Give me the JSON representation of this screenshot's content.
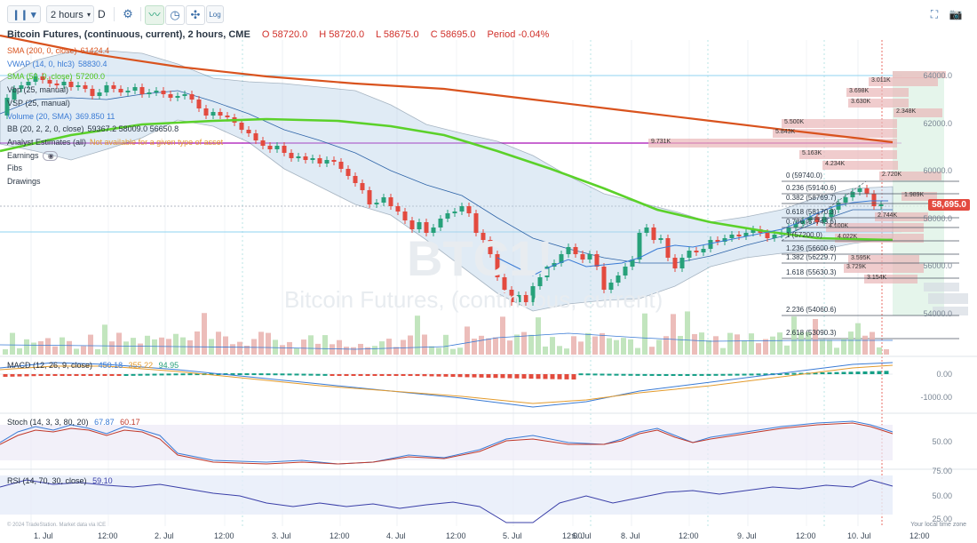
{
  "toolbar": {
    "chart_type_icon": "candlestick-icon",
    "interval": "2 hours",
    "interval_suffix": "D",
    "settings_icon": "gear-icon",
    "indicator_icon": "indicator-icon",
    "clock_icon": "clock-icon",
    "draw_icon": "drawing-icon",
    "log_label": "Log",
    "fullscreen_icon": "fullscreen-icon",
    "camera_icon": "camera-icon"
  },
  "header": {
    "title": "Bitcoin Futures, (continuous, current), 2 hours, CME",
    "open": "O 58720.0",
    "high": "H 58720.0",
    "low": "L 58675.0",
    "close": "C 58695.0",
    "period": "Period -0.04%"
  },
  "legend": [
    {
      "label": "SMA (200, 0, close)",
      "value": "61424.4",
      "color": "#d9531e"
    },
    {
      "label": "VWAP (14, 0, hlc3)",
      "value": "58830.4",
      "color": "#3a7bd5"
    },
    {
      "label": "SMA (50, 0, close)",
      "value": "57200.0",
      "color": "#52c41a"
    },
    {
      "label": "Vbp (25, manual)",
      "value": "",
      "color": "#2b3745"
    },
    {
      "label": "VSP (25, manual)",
      "value": "",
      "color": "#2b3745"
    },
    {
      "label": "Volume (20, SMA)",
      "value": "369.850 11",
      "color": "#3a7bd5"
    },
    {
      "label": "BB (20, 2, 2, 0, close)",
      "value": "59367.2 58009.0 56650.8",
      "color": "#2b3745"
    },
    {
      "label": "Analyst Estimates (all)",
      "value": "Not available for a given type of asset",
      "color": "#2b3745",
      "value_color": "#e39b2d"
    },
    {
      "label": "Earnings",
      "value": "",
      "color": "#2b3745"
    },
    {
      "label": "Fibs",
      "value": "",
      "color": "#2b3745"
    },
    {
      "label": "Drawings",
      "value": "",
      "color": "#2b3745"
    }
  ],
  "panes": {
    "macd": {
      "label": "MACD (12, 26, 9, close)",
      "v1": "450.18",
      "v2": "355.22",
      "v3": "94.95"
    },
    "stoch": {
      "label": "Stoch (14, 3, 3, 80, 20)",
      "v1": "67.87",
      "v2": "60.17"
    },
    "rsi": {
      "label": "RSI (14, 70, 30, close)",
      "v1": "59.10"
    }
  },
  "price_axis": [
    "64000.0",
    "62000.0",
    "60000.0",
    "58000.0",
    "56000.0",
    "54000.0"
  ],
  "macd_axis": [
    "0.00",
    "-1000.00"
  ],
  "stoch_axis": [
    "50.00"
  ],
  "rsi_axis": [
    "75.00",
    "50.00",
    "25.00"
  ],
  "last_price": "58,695.0",
  "x_axis": [
    "1. Jul",
    "12:00",
    "2. Jul",
    "12:00",
    "3. Jul",
    "12:00",
    "4. Jul",
    "12:00",
    "5. Jul",
    "12:00",
    "6. Jul",
    "8. Jul",
    "12:00",
    "9. Jul",
    "12:00",
    "10. Jul",
    "12:00"
  ],
  "fib_levels": [
    {
      "label": "0 (59740.0)"
    },
    {
      "label": "0.236 (59140.6)"
    },
    {
      "label": "0.382 (58769.7)"
    },
    {
      "label": "0.618 (58170.3)"
    },
    {
      "label": "0.786 (57743.6)"
    },
    {
      "label": "1 (57200.0)"
    },
    {
      "label": "1.236 (56600.6)"
    },
    {
      "label": "1.382 (56229.7)"
    },
    {
      "label": "1.618 (55630.3)"
    },
    {
      "label": "2.236 (54060.6)"
    },
    {
      "label": "2.618 (53090.3)"
    }
  ],
  "volume_profile": [
    "3.011K",
    "3.698K",
    "3.630K",
    "2.348K",
    "5.500K",
    "5.843K",
    "9.731K",
    "5.163K",
    "4.234K",
    "2.720K",
    "1.989K",
    "2.744K",
    "4.100K",
    "4.022K",
    "3.595K",
    "3.729K",
    "3.154K"
  ],
  "watermark": {
    "symbol": "BTC1!",
    "name": "Bitcoin Futures, (continuous, current)"
  },
  "footer": {
    "copyright": "© 2024 TradeStation. Market data via ICE",
    "timezone": "Your local time zone"
  },
  "colors": {
    "up": "#27a17a",
    "down": "#e34a3f",
    "sma200": "#d9531e",
    "sma50": "#5bd12a",
    "bb": "#bcd4ea"
  },
  "chart_data": {
    "type": "line",
    "title": "Bitcoin Futures, (continuous, current), 2 hours, CME",
    "x": [
      "1. Jul",
      "2. Jul",
      "3. Jul",
      "4. Jul",
      "5. Jul",
      "6. Jul",
      "8. Jul",
      "9. Jul",
      "10. Jul"
    ],
    "series": [
      {
        "name": "SMA (200, 0, close)",
        "values": [
          64500,
          64100,
          63700,
          63200,
          62700,
          62300,
          61900,
          61600,
          61424
        ]
      },
      {
        "name": "SMA (50, 0, close)",
        "values": [
          61500,
          62100,
          62100,
          61600,
          60400,
          59000,
          57800,
          57300,
          57200
        ]
      }
    ],
    "ylim": [
      53000,
      64500
    ]
  }
}
